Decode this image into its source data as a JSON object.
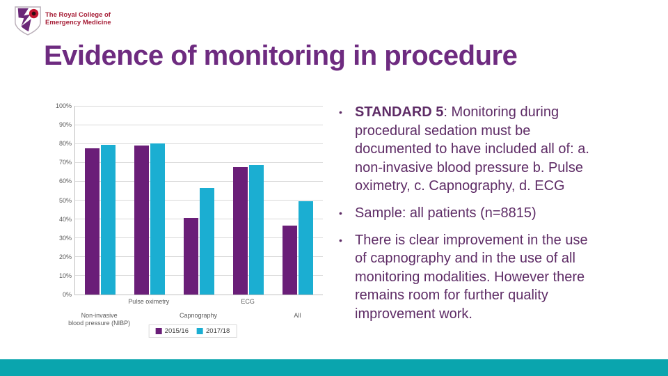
{
  "slide": {
    "title": "Evidence of monitoring in procedure",
    "logo": {
      "line1": "The Royal College of",
      "line2": "Emergency Medicine"
    },
    "bullet_char": "•",
    "bullets": [
      {
        "bold": "STANDARD 5",
        "text": ": Monitoring during\nprocedural sedation must be\ndocumented to have included all of: a.\nnon-invasive blood pressure b. Pulse\noximetry, c. Capnography, d. ECG"
      },
      {
        "bold": "",
        "text": "Sample: all patients (n=8815)"
      },
      {
        "bold": "",
        "text": "There is clear improvement in the use\nof capnography and in the use of all\nmonitoring modalities. However there\nremains room for further quality\nimprovement work."
      }
    ],
    "colors": {
      "title": "#6E2B80",
      "body_text": "#5E2C66",
      "footer_bar": "#0AA5AE",
      "logo_red": "#A61D36",
      "logo_purple": "#6B2878",
      "poppy_red": "#C21630"
    }
  },
  "chart_data": {
    "type": "bar",
    "title": "",
    "xlabel": "",
    "ylabel": "",
    "categories": [
      "Non-invasive\nblood pressure (NIBP)",
      "Pulse oximetry",
      "Capnography",
      "ECG",
      "All"
    ],
    "category_label_rows": [
      2,
      1,
      2,
      1,
      2
    ],
    "series": [
      {
        "name": "2015/16",
        "color": "#6A1E78",
        "values": [
          77.5,
          79,
          40.5,
          67.5,
          36.5
        ]
      },
      {
        "name": "2017/18",
        "color": "#1BAED2",
        "values": [
          79.5,
          80,
          56.5,
          68.5,
          49.5
        ]
      }
    ],
    "ylim": [
      0,
      100
    ],
    "ytick_step": 10,
    "ytick_labels": [
      "0%",
      "10%",
      "20%",
      "30%",
      "40%",
      "50%",
      "60%",
      "70%",
      "80%",
      "90%",
      "100%"
    ],
    "grid": true,
    "legend_position": "bottom",
    "axis_text_color": "#595959",
    "gridline_color": "#D9D9D9",
    "axis_line_color": "#BFBFBF"
  }
}
